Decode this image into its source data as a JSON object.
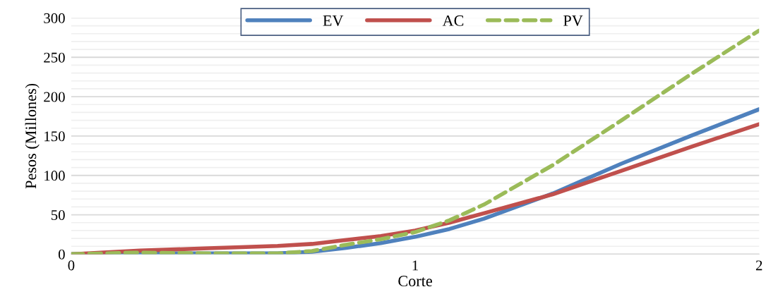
{
  "chart_data": {
    "type": "line",
    "xlabel": "Corte",
    "ylabel": "Pesos (Millones)",
    "x": [
      0,
      0.2,
      0.4,
      0.6,
      0.7,
      0.8,
      0.9,
      1.0,
      1.1,
      1.2,
      1.4,
      1.6,
      1.8,
      2.0
    ],
    "series": [
      {
        "name": "EV",
        "color": "#4f81bd",
        "line_style": "solid",
        "values": [
          0,
          1,
          1,
          1,
          3,
          8,
          14,
          22,
          32,
          45,
          77,
          115,
          150,
          184
        ]
      },
      {
        "name": "AC",
        "color": "#c0504d",
        "line_style": "solid",
        "values": [
          0,
          4.5,
          7.5,
          10.5,
          13,
          18,
          23,
          30,
          40,
          52,
          76,
          106,
          136,
          165
        ]
      },
      {
        "name": "PV",
        "color": "#9bbb59",
        "line_style": "dashed",
        "values": [
          0,
          2,
          1,
          1,
          4,
          12,
          19,
          28,
          43,
          63,
          113,
          170,
          228,
          284
        ]
      }
    ],
    "xlim": [
      0,
      2
    ],
    "xticks": [
      0,
      1,
      2
    ],
    "ylim": [
      0,
      300
    ],
    "yticks": [
      0,
      50,
      100,
      150,
      200,
      250,
      300
    ],
    "grid": "y",
    "legend": "top",
    "marker": "none"
  }
}
